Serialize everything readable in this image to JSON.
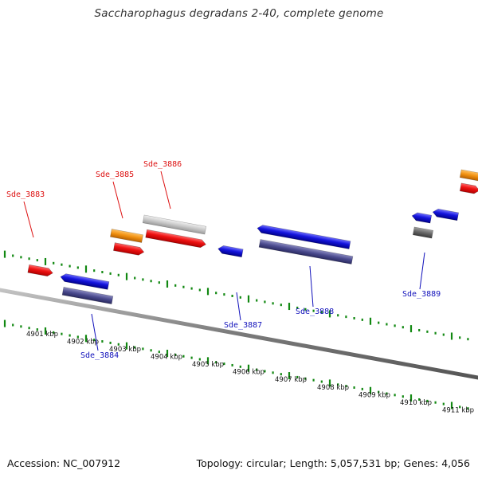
{
  "title": "Saccharophagus degradans 2-40, complete genome",
  "footer": {
    "accession": "Accession: NC_007912",
    "stats": "Topology: circular; Length: 5,057,531 bp; Genes: 4,056"
  },
  "colors": {
    "backbone": "#7a7a7a",
    "tick": "#118811",
    "forward_cds": "#ee1111",
    "reverse_cds": "#1414dd",
    "forward_gene": "#c8c8c8",
    "reverse_gene": "#4a4a8e",
    "forward_other": "#f09010",
    "reverse_other": "#666666",
    "forward_label": "#dd1111",
    "reverse_label": "#1111bb"
  },
  "scale_labels": [
    "4901 kbp",
    "4902 kbp",
    "4903 kbp",
    "4904 kbp",
    "4905 kbp",
    "4906 kbp",
    "4907 kbp",
    "4908 kbp",
    "4909 kbp",
    "4910 kbp",
    "4911 kbp"
  ],
  "gene_labels": {
    "forward": [
      "Sde_3883",
      "Sde_3885",
      "Sde_3886"
    ],
    "reverse": [
      "Sde_3884",
      "Sde_3887",
      "Sde_3888",
      "Sde_3889"
    ]
  }
}
